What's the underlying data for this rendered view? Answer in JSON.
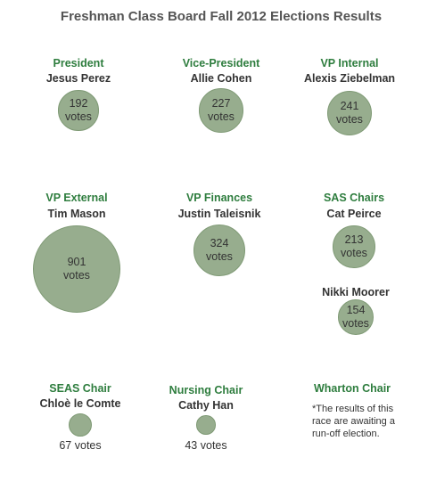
{
  "page": {
    "title": "Freshman Class Board Fall 2012 Elections Results"
  },
  "colors": {
    "bubble_fill": "#97ad8e",
    "role_text": "#2e7d3e",
    "text": "#333333"
  },
  "chart_data": {
    "type": "bubble",
    "title": "Freshman Class Board Fall 2012 Elections Results",
    "unit": "votes",
    "items": [
      {
        "role": "President",
        "name": "Jesus Perez",
        "votes": 192
      },
      {
        "role": "Vice-President",
        "name": "Allie Cohen",
        "votes": 227
      },
      {
        "role": "VP Internal",
        "name": "Alexis Ziebelman",
        "votes": 241
      },
      {
        "role": "VP External",
        "name": "Tim Mason",
        "votes": 901
      },
      {
        "role": "VP Finances",
        "name": "Justin Taleisnik",
        "votes": 324
      },
      {
        "role": "SAS Chairs",
        "name": "Cat Peirce",
        "votes": 213
      },
      {
        "role": "",
        "name": "Nikki Moorer",
        "votes": 154
      },
      {
        "role": "SEAS Chair",
        "name": "Chloè le Comte",
        "votes": 67
      },
      {
        "role": "Nursing Chair",
        "name": "Cathy Han",
        "votes": 43
      },
      {
        "role": "Wharton Chair",
        "name": "",
        "votes": null
      }
    ],
    "labels": [
      {
        "top": "192",
        "bottom": "votes"
      },
      {
        "top": "227",
        "bottom": "votes"
      },
      {
        "top": "241",
        "bottom": "votes"
      },
      {
        "top": "901",
        "bottom": "votes"
      },
      {
        "top": "324",
        "bottom": "votes"
      },
      {
        "top": "213",
        "bottom": "votes"
      },
      {
        "top": "154",
        "bottom": "votes"
      },
      {
        "top": "",
        "bottom": "67 votes"
      },
      {
        "top": "",
        "bottom": "43 votes"
      }
    ],
    "note": "*The results of this race are awaiting a run-off election."
  }
}
